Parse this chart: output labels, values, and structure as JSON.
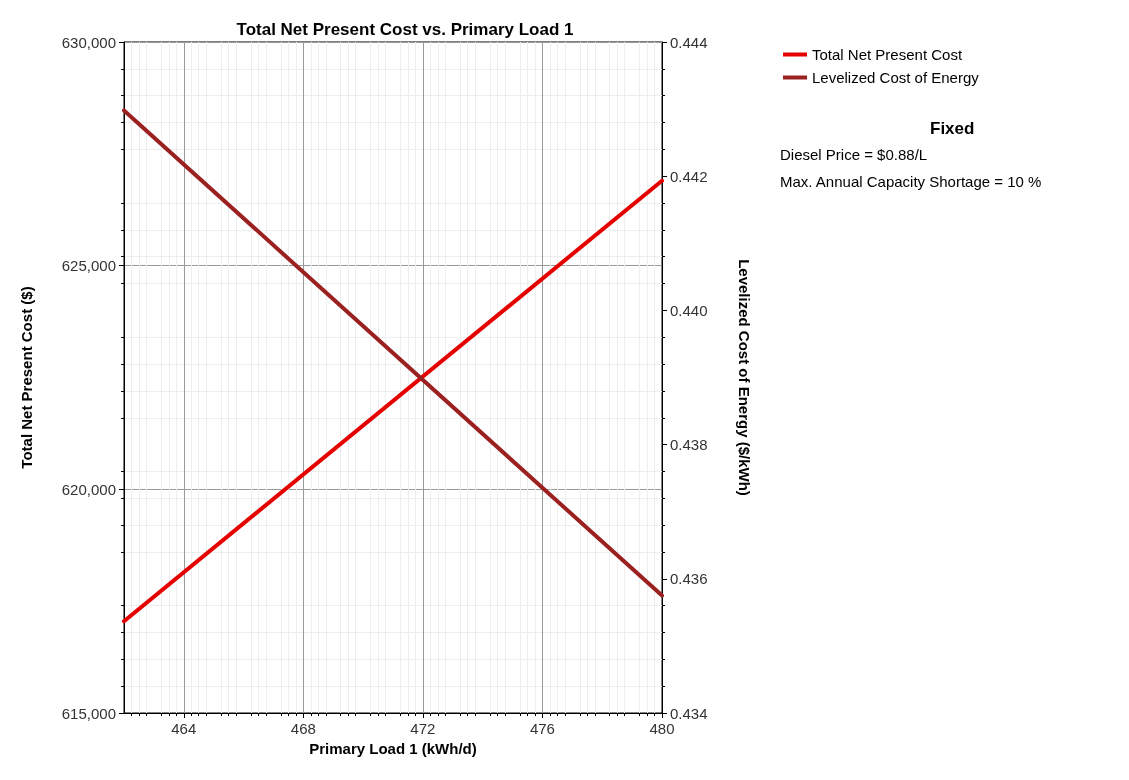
{
  "chart_data": {
    "type": "line",
    "title": "Total Net Present Cost vs. Primary Load 1",
    "xlabel": "Primary Load 1 (kWh/d)",
    "ylabel": "Total Net Present Cost ($)",
    "y2label": "Levelized Cost of Energy ($/kWh)",
    "x": [
      462,
      480
    ],
    "series": [
      {
        "name": "Total Net Present Cost",
        "color": "#e50000",
        "values": [
          617050,
          626900
        ]
      },
      {
        "name": "Levelized Cost of Energy",
        "color": "#9b2020",
        "values": [
          0.44298,
          0.43575
        ],
        "axis": "y2"
      }
    ],
    "xlim": [
      462,
      480
    ],
    "xticks": [
      464,
      468,
      472,
      476,
      480
    ],
    "ylim": [
      615000,
      630000
    ],
    "yticks": [
      {
        "value": 615000,
        "label": "615,000"
      },
      {
        "value": 620000,
        "label": "620,000"
      },
      {
        "value": 625000,
        "label": "625,000"
      },
      {
        "value": 630000,
        "label": "630,000"
      }
    ],
    "y2lim": [
      0.434,
      0.444
    ],
    "y2ticks": [
      {
        "value": 0.434,
        "label": "0.434"
      },
      {
        "value": 0.436,
        "label": "0.436"
      },
      {
        "value": 0.438,
        "label": "0.438"
      },
      {
        "value": 0.44,
        "label": "0.440"
      },
      {
        "value": 0.442,
        "label": "0.442"
      },
      {
        "value": 0.444,
        "label": "0.444"
      }
    ],
    "annotations": [
      "Fixed",
      "Diesel Price = $0.88/L",
      "Max. Annual Capacity Shortage = 10 %"
    ],
    "grid": true,
    "legend": "top right",
    "marker": "none",
    "line_style": "solid"
  }
}
